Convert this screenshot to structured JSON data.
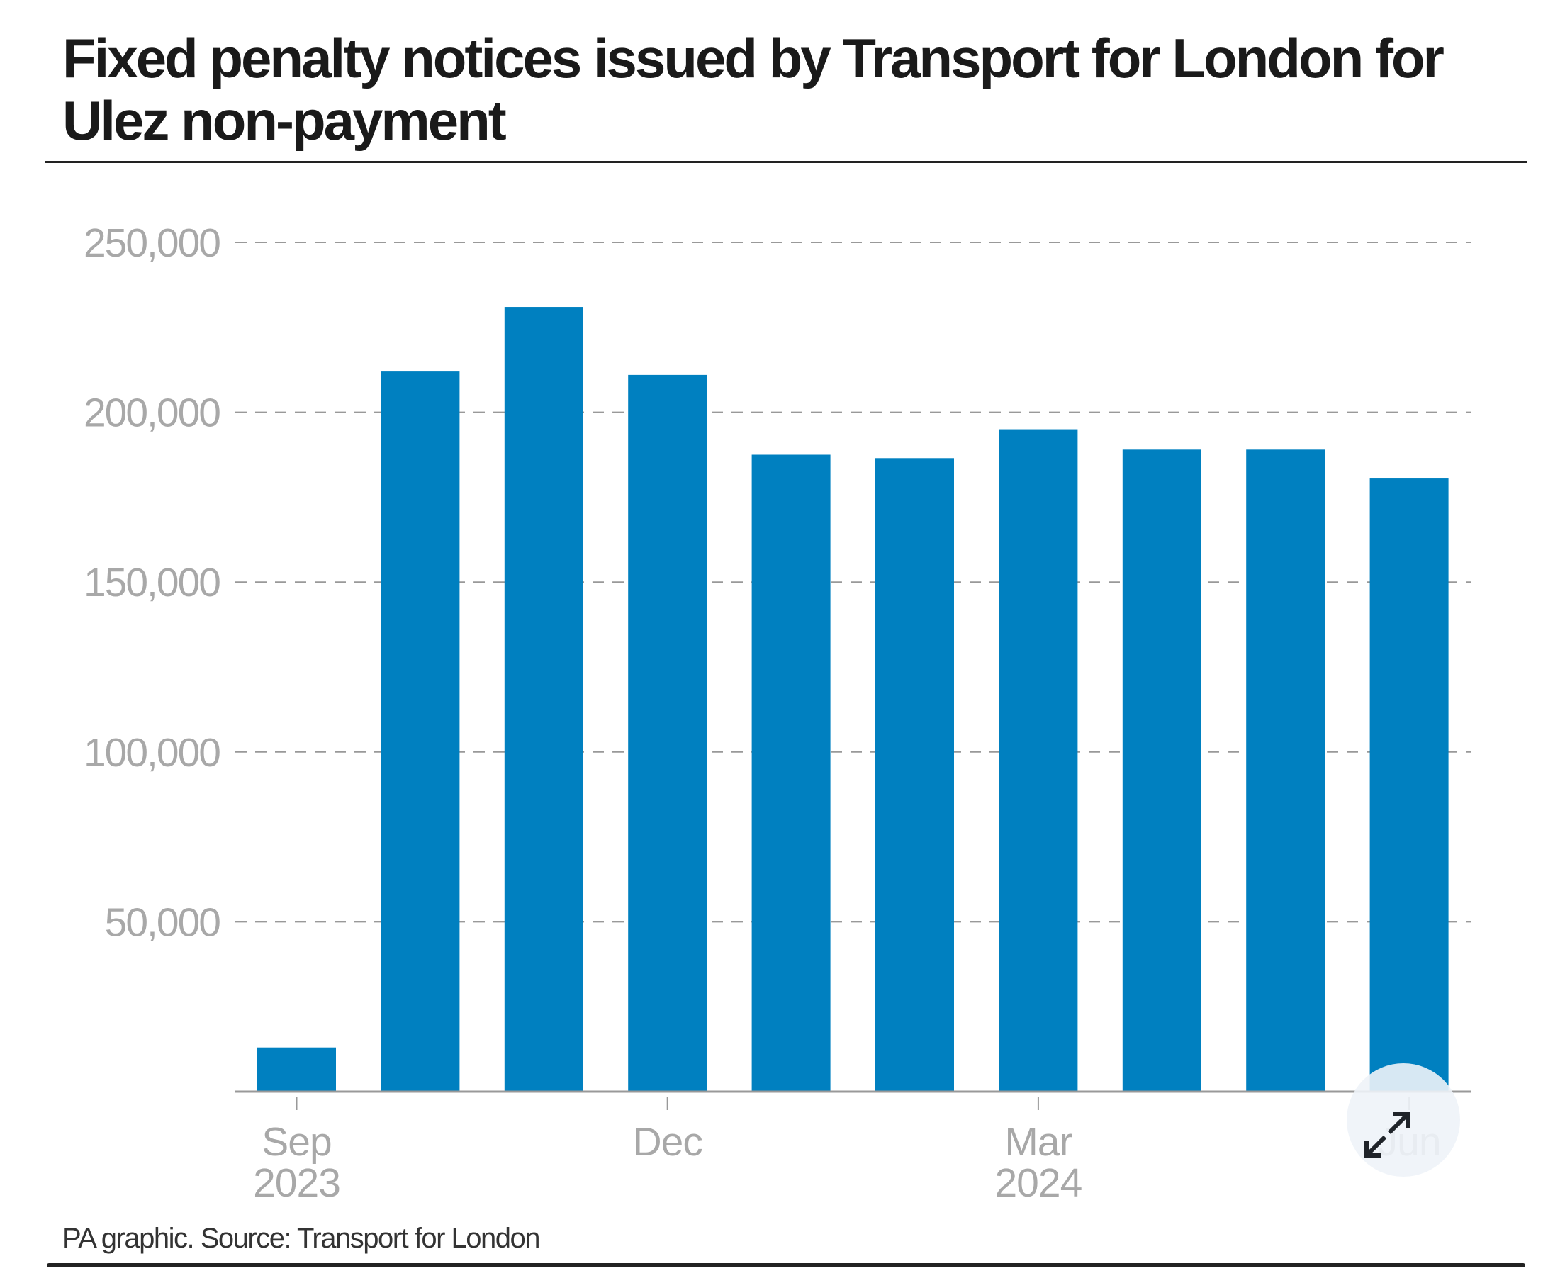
{
  "chart_data": {
    "type": "bar",
    "title": "Fixed penalty notices issued by Transport for London for Ulez non-payment",
    "categories": [
      "Sep 2023",
      "Oct 2023",
      "Nov 2023",
      "Dec 2023",
      "Jan 2024",
      "Feb 2024",
      "Mar 2024",
      "Apr 2024",
      "May 2024",
      "Jun 2024"
    ],
    "values": [
      13000,
      212000,
      231000,
      211000,
      187500,
      186500,
      195000,
      189000,
      189000,
      180500
    ],
    "xlabel": "",
    "ylabel": "",
    "ylim": [
      0,
      250000
    ],
    "yticks": [
      {
        "value": 50000,
        "label": "50,000"
      },
      {
        "value": 100000,
        "label": "100,000"
      },
      {
        "value": 150000,
        "label": "150,000"
      },
      {
        "value": 200000,
        "label": "200,000"
      },
      {
        "value": 250000,
        "label": "250,000"
      }
    ],
    "xticks": [
      {
        "index": 0,
        "line1": "Sep",
        "line2": "2023"
      },
      {
        "index": 3,
        "line1": "Dec",
        "line2": ""
      },
      {
        "index": 6,
        "line1": "Mar",
        "line2": "2024"
      },
      {
        "index": 9,
        "line1": "Jun",
        "line2": ""
      }
    ],
    "grid": "dashed-horizontal",
    "bar_color": "#0080c0",
    "source": "PA graphic. Source: Transport for London"
  },
  "overlay": {
    "icon": "expand-icon"
  }
}
